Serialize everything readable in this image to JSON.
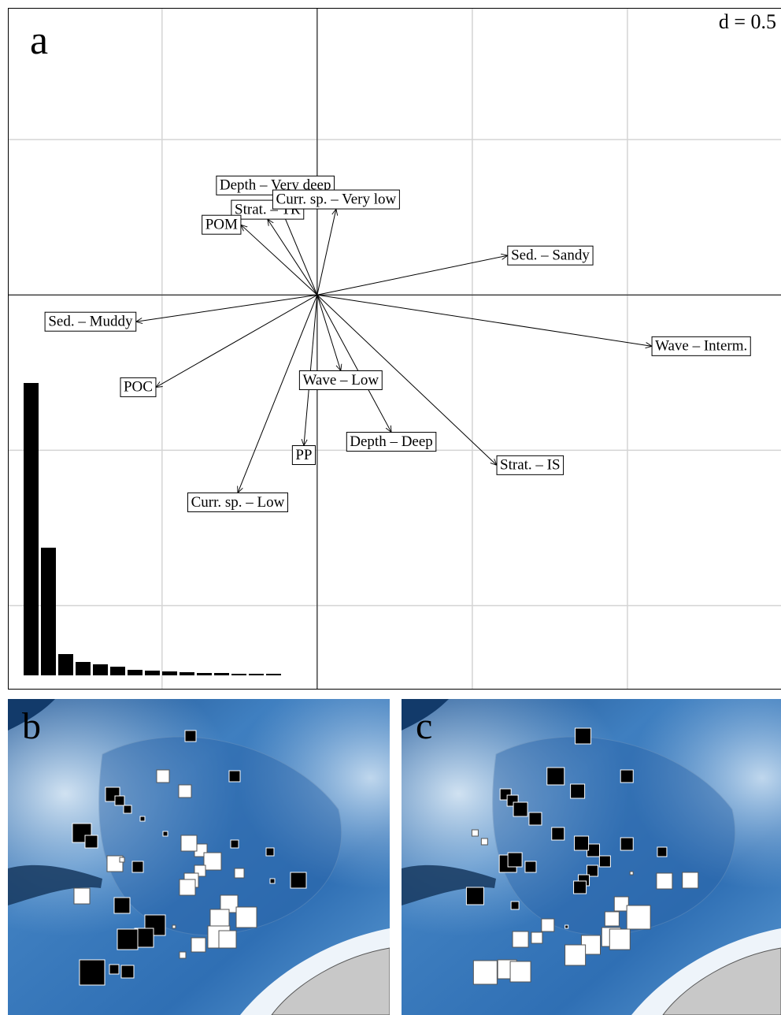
{
  "chart_data": [
    {
      "type": "biplot",
      "label": "a",
      "scale_label": "d = 0.5",
      "xlim": [
        -0.997,
        1.495
      ],
      "ylim": [
        -1.27,
        0.924
      ],
      "xticks": [
        -0.5,
        0,
        0.5,
        1
      ],
      "yticks": [
        -1,
        -0.5,
        0,
        0.5
      ],
      "grid": true,
      "arrows": {
        "labels": [
          "Depth – Very deep",
          "Strat. – TR",
          "Curr. sp. – Very low",
          "POM",
          "Sed. – Sandy",
          "Wave – Interm.",
          "Sed. – Muddy",
          "POC",
          "Wave – Low",
          "Depth – Deep",
          "Strat. – IS",
          "PP",
          "Curr. sp. – Low"
        ],
        "x": [
          -0.135,
          -0.16,
          0.061,
          -0.246,
          0.614,
          1.079,
          -0.584,
          -0.52,
          0.076,
          0.239,
          0.579,
          -0.043,
          -0.256
        ],
        "y": [
          0.322,
          0.244,
          0.277,
          0.226,
          0.127,
          -0.165,
          -0.086,
          -0.297,
          -0.244,
          -0.442,
          -0.548,
          -0.485,
          -0.637
        ]
      },
      "eigenvalues": [
        3.71,
        1.62,
        0.27,
        0.17,
        0.14,
        0.11,
        0.07,
        0.06,
        0.05,
        0.04,
        0.03,
        0.03,
        0.02,
        0.02,
        0.02
      ]
    },
    {
      "type": "map",
      "label": "b",
      "xlim": [
        0,
        485
      ],
      "ylim": [
        0,
        401
      ],
      "x": [
        232,
        197,
        288,
        225,
        133,
        142,
        152,
        171,
        245,
        333,
        94,
        106,
        200,
        230,
        288,
        136,
        145,
        165,
        260,
        244,
        294,
        233,
        228,
        336,
        369,
        94,
        145,
        281,
        269,
        303,
        187,
        173,
        152,
        211,
        268,
        279,
        242,
        222,
        107,
        135,
        152
      ],
      "y": [
        354,
        303,
        303,
        284,
        280,
        272,
        261,
        249,
        209,
        207,
        231,
        220,
        230,
        218,
        217,
        192,
        197,
        188,
        195,
        183,
        180,
        171,
        162,
        170,
        171,
        151,
        139,
        141,
        122,
        124,
        114,
        98,
        96,
        112,
        99,
        96,
        89,
        76,
        54,
        58,
        55
      ],
      "values": [
        1.4,
        -1.6,
        1.4,
        -1.6,
        1.8,
        1.2,
        1.0,
        0.6,
        -1.6,
        1.0,
        2.4,
        1.6,
        0.6,
        -2.0,
        1.0,
        -2.0,
        -0.6,
        1.4,
        -2.2,
        -1.4,
        -1.2,
        -1.8,
        -2.0,
        0.6,
        2.0,
        -2.0,
        2.0,
        -2.2,
        -2.4,
        -2.6,
        2.6,
        2.4,
        2.6,
        -0.4,
        -2.8,
        -2.2,
        -1.8,
        -0.8,
        3.2,
        1.2,
        1.6
      ]
    },
    {
      "type": "map",
      "label": "c",
      "xlim": [
        0,
        485
      ],
      "ylim": [
        0,
        401
      ],
      "x": [
        232,
        197,
        288,
        225,
        133,
        142,
        152,
        171,
        245,
        333,
        94,
        106,
        200,
        230,
        288,
        136,
        145,
        165,
        260,
        244,
        294,
        233,
        228,
        336,
        369,
        94,
        145,
        281,
        269,
        303,
        187,
        173,
        152,
        211,
        268,
        279,
        242,
        222,
        107,
        135,
        152
      ],
      "y": [
        354,
        303,
        303,
        284,
        280,
        272,
        261,
        249,
        209,
        207,
        231,
        220,
        230,
        218,
        217,
        192,
        197,
        188,
        195,
        183,
        180,
        171,
        162,
        170,
        171,
        151,
        139,
        141,
        122,
        124,
        114,
        98,
        96,
        112,
        99,
        96,
        89,
        76,
        54,
        58,
        55
      ],
      "values": [
        2.0,
        2.2,
        1.6,
        1.8,
        1.4,
        1.4,
        1.8,
        1.6,
        1.6,
        1.2,
        -0.8,
        -0.8,
        1.6,
        1.8,
        1.6,
        2.2,
        1.8,
        1.4,
        1.4,
        1.4,
        -0.4,
        1.4,
        1.6,
        -2.0,
        -2.0,
        2.2,
        1.0,
        -1.8,
        -1.8,
        -3.0,
        -1.6,
        -1.4,
        -2.0,
        0.4,
        -2.4,
        -2.6,
        -2.4,
        -2.6,
        -3.0,
        -2.4,
        -2.6
      ]
    }
  ]
}
